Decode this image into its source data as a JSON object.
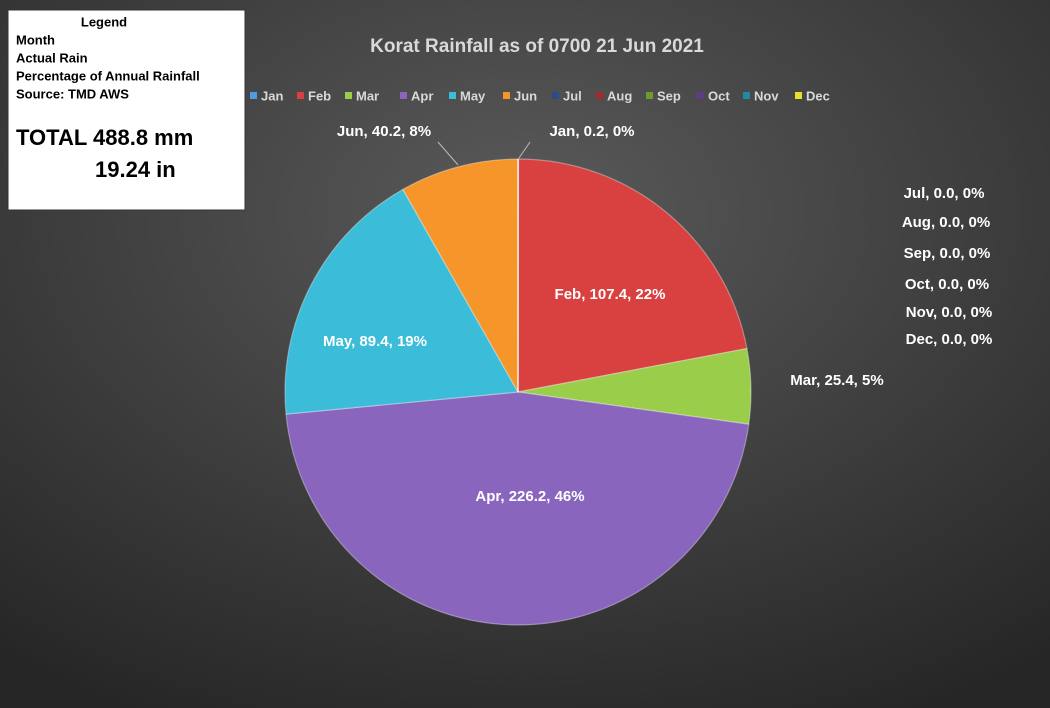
{
  "chart_data": {
    "type": "pie",
    "title": "Korat Rainfall as of 0700 21 Jun 2021",
    "categories": [
      "Jan",
      "Feb",
      "Mar",
      "Apr",
      "May",
      "Jun",
      "Jul",
      "Aug",
      "Sep",
      "Oct",
      "Nov",
      "Dec"
    ],
    "values": [
      0.2,
      107.4,
      25.4,
      226.2,
      89.4,
      40.2,
      0,
      0,
      0,
      0,
      0,
      0
    ],
    "value_labels": [
      "Jan, 0.2, 0%",
      "Feb, 107.4, 22%",
      "Mar, 25.4, 5%",
      "Apr, 226.2, 46%",
      "May, 89.4, 19%",
      "Jun, 40.2, 8%",
      "Jul, 0.0, 0%",
      "Aug, 0.0, 0%",
      "Sep, 0.0, 0%",
      "Oct, 0.0, 0%",
      "Nov, 0.0, 0%",
      "Dec, 0.0, 0%"
    ],
    "colors": [
      "#4f9be0",
      "#d94040",
      "#9acd4a",
      "#8a65bd",
      "#3bbcd9",
      "#f5952a",
      "#2a4d8a",
      "#a32a2a",
      "#6f9a2e",
      "#5a3f85",
      "#1f8aa0",
      "#e8e02a"
    ],
    "legend": "top",
    "info_box": {
      "title": "Legend",
      "lines": [
        "Month",
        "Actual Rain",
        "Percentage of Annual Rainfall",
        "Source: TMD AWS"
      ],
      "total": [
        "TOTAL 488.8 mm",
        "19.24 in"
      ]
    }
  }
}
